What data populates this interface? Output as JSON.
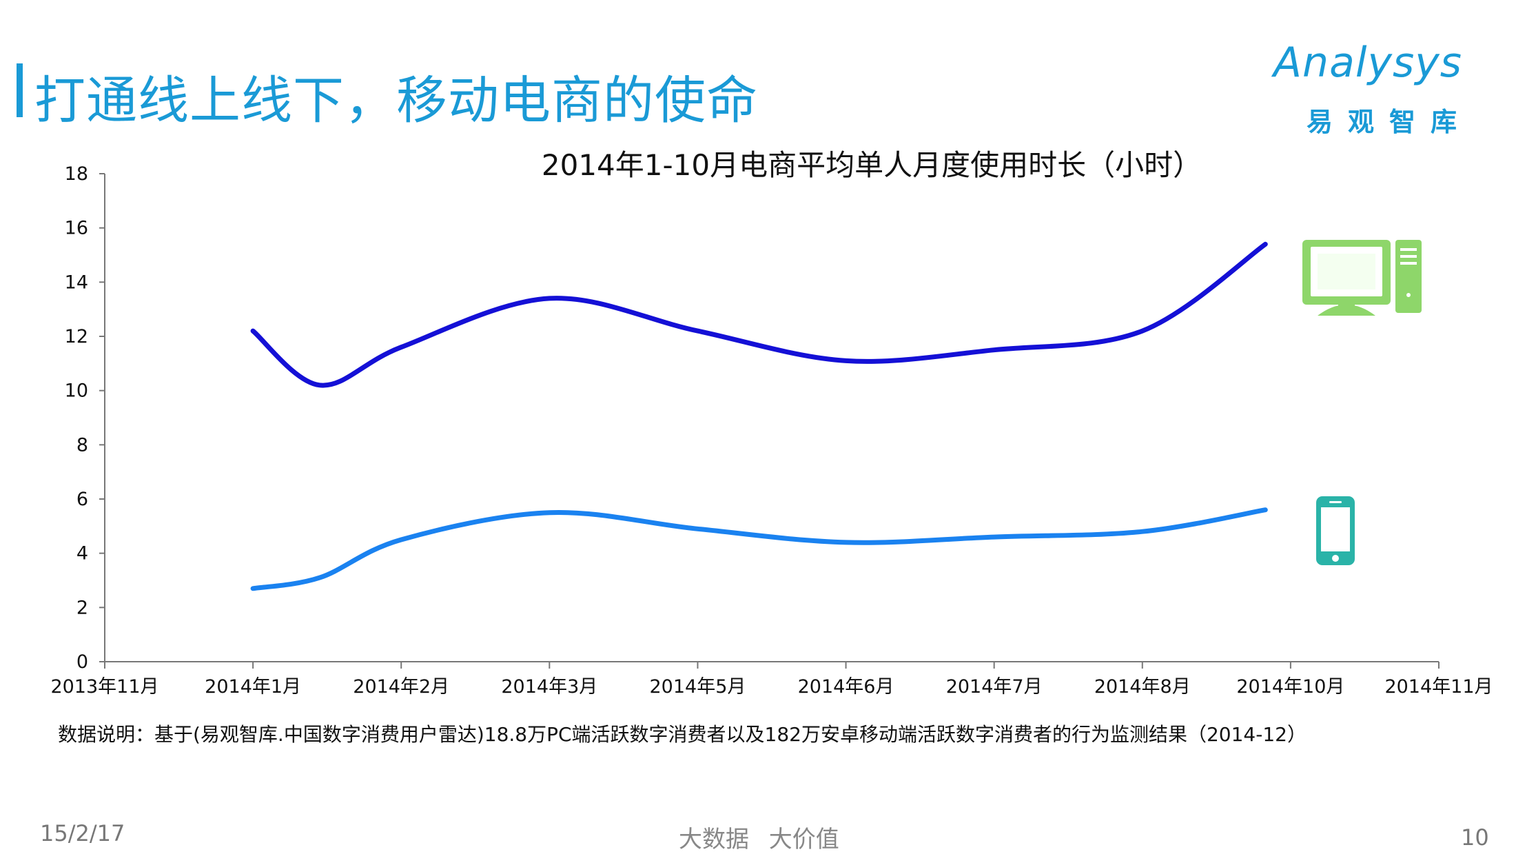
{
  "page": {
    "title": "打通线上线下，移动电商的使命",
    "logo_word": "Analysys",
    "logo_sub": "易观智库",
    "note": "数据说明：基于(易观智库.中国数字消费用户雷达)18.8万PC端活跃数字消费者以及182万安卓移动端活跃数字消费者的行为监测结果（2014-12）",
    "footer_date": "15/2/17",
    "footer_slogan": "大数据 大价值",
    "footer_page": "10"
  },
  "chart_data": {
    "type": "line",
    "title": "2014年1-10月电商平均单人月度使用时长（小时）",
    "xlabel": "",
    "ylabel": "",
    "ylim": [
      0,
      18
    ],
    "yticks": [
      0,
      2,
      4,
      6,
      8,
      10,
      12,
      14,
      16,
      18
    ],
    "categories": [
      "2013年11月",
      "2014年1月",
      "2014年2月",
      "2014年3月",
      "2014年5月",
      "2014年6月",
      "2014年7月",
      "2014年8月",
      "2014年10月",
      "2014年11月"
    ],
    "grid": false,
    "legend": "icons-right",
    "series": [
      {
        "icon": "desktop-computer-icon",
        "color": "#1410d6",
        "points": [
          [
            1,
            12.2
          ],
          [
            1.45,
            10.2
          ],
          [
            2,
            11.6
          ],
          [
            3,
            13.4
          ],
          [
            4,
            12.2
          ],
          [
            5,
            11.1
          ],
          [
            6,
            11.5
          ],
          [
            7,
            12.2
          ],
          [
            7.83,
            15.4
          ]
        ]
      },
      {
        "icon": "smartphone-icon",
        "color": "#1a82f0",
        "points": [
          [
            1,
            2.7
          ],
          [
            1.45,
            3.1
          ],
          [
            2,
            4.5
          ],
          [
            3,
            5.5
          ],
          [
            4,
            4.9
          ],
          [
            5,
            4.4
          ],
          [
            6,
            4.6
          ],
          [
            7,
            4.8
          ],
          [
            7.83,
            5.6
          ]
        ]
      }
    ],
    "icon_colors": {
      "desktop": "#8ed66a",
      "phone": "#2ab3a8"
    }
  }
}
